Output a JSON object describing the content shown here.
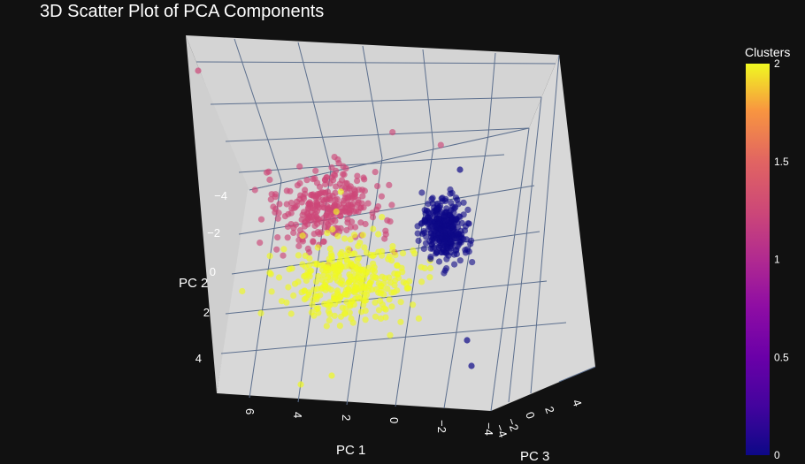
{
  "chart_data": {
    "type": "scatter",
    "title": "3D Scatter Plot of PCA Components",
    "axes": {
      "x": {
        "label": "PC 1",
        "ticks": [
          "6",
          "4",
          "2",
          "0",
          "−2",
          "−4"
        ]
      },
      "y": {
        "label": "PC 2",
        "ticks": [
          "−4",
          "−2",
          "0",
          "2",
          "4"
        ]
      },
      "z": {
        "label": "PC 3",
        "ticks": [
          "−4",
          "−2",
          "0",
          "2",
          "4"
        ]
      }
    },
    "colorbar": {
      "title": "Clusters",
      "ticks": [
        "2",
        "1.5",
        "1",
        "0.5",
        "0"
      ],
      "range": [
        0,
        2
      ]
    },
    "colors": {
      "background": "#111111",
      "pane": "#d4d4d4",
      "grid": "#5c6f8e",
      "cluster_0": "#0d0887",
      "cluster_1": "#cc4778",
      "cluster_2": "#f0f921"
    },
    "series": [
      {
        "cluster": 0,
        "center_pc1": -2.3,
        "center_pc2": -1.0,
        "spread": 0.8,
        "count": 330
      },
      {
        "cluster": 1,
        "center_pc1": 2.4,
        "center_pc2": -2.9,
        "spread": 1.2,
        "count": 300
      },
      {
        "cluster": 2,
        "center_pc1": 2.0,
        "center_pc2": 0.7,
        "spread": 1.4,
        "count": 330
      }
    ]
  }
}
